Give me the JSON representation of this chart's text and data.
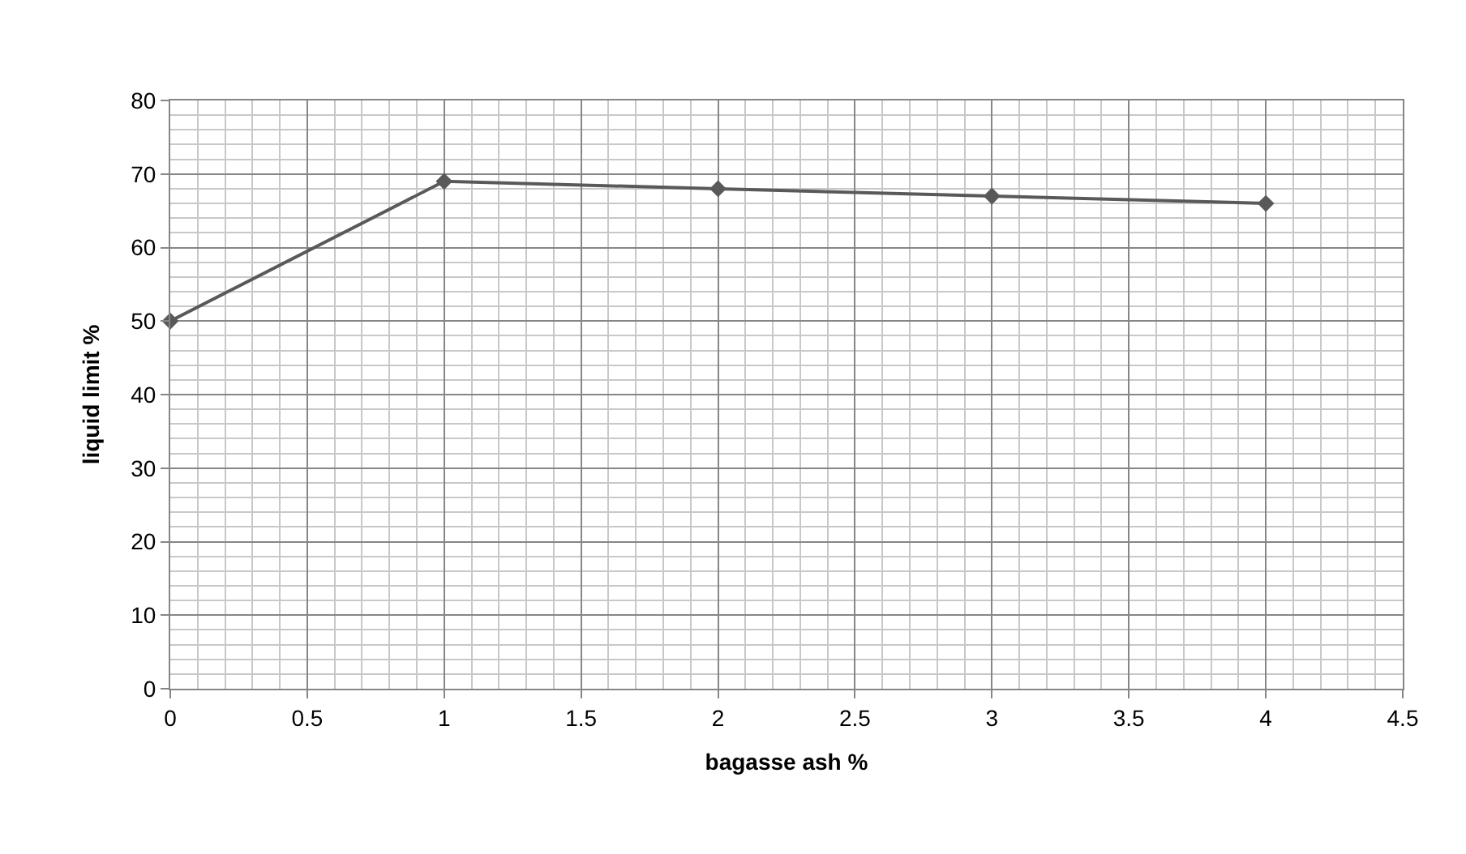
{
  "chart_data": {
    "type": "line",
    "xlabel": "bagasse ash %",
    "ylabel": "liquid limit %",
    "x": [
      0,
      1,
      2,
      3,
      4
    ],
    "series": [
      {
        "color": "#595959",
        "values": [
          50,
          69,
          68,
          67,
          66
        ]
      }
    ],
    "xlim": [
      0,
      4.5
    ],
    "xticks": [
      0,
      0.5,
      1,
      1.5,
      2,
      2.5,
      3,
      3.5,
      4,
      4.5
    ],
    "ylim": [
      0,
      80
    ],
    "yticks": [
      0,
      10,
      20,
      30,
      40,
      50,
      60,
      70,
      80
    ],
    "grid": true,
    "marker": "diamond",
    "line_style": "solid"
  }
}
